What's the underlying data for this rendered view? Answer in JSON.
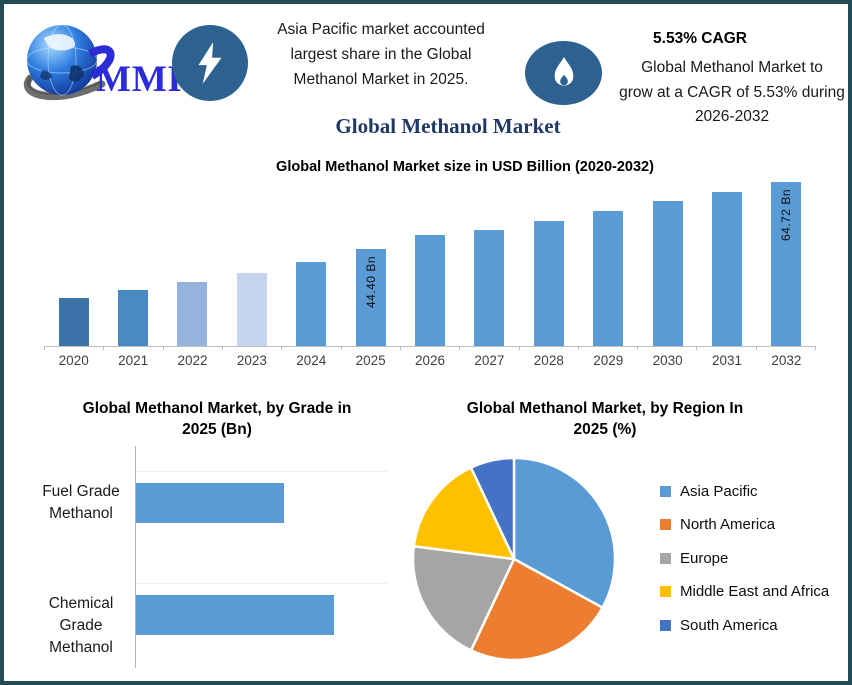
{
  "brand": {
    "logo_text": "MMR"
  },
  "header": {
    "left_note_lines": [
      "Asia Pacific market accounted",
      "largest share in the Global",
      "Methanol Market in 2025."
    ],
    "cagr_headline": "5.53% CAGR",
    "cagr_lines": [
      "Global Methanol Market to",
      "grow at a CAGR of 5.53% during",
      "2026-2032"
    ]
  },
  "page_title": "Global Methanol Market",
  "colors": {
    "accent_blue": "#5b9bd5",
    "icon_circle": "#2c6190",
    "navy_title": "#1f3864",
    "frame_border": "#254b57",
    "logo_blue": "#2c2cd6",
    "axis_gray": "#bfbfbf"
  },
  "chart_data": [
    {
      "id": "market_size_by_year",
      "type": "bar",
      "title": "Global Methanol Market size in USD Billion (2020-2032)",
      "ylabel": "USD Billion",
      "categories": [
        "2020",
        "2021",
        "2022",
        "2023",
        "2024",
        "2025",
        "2026",
        "2027",
        "2028",
        "2029",
        "2030",
        "2031",
        "2032"
      ],
      "values": [
        29.6,
        31.9,
        34.3,
        37.2,
        40.6,
        44.4,
        48.6,
        50.2,
        52.9,
        55.9,
        59.0,
        61.7,
        64.72
      ],
      "values_estimated_except_labeled": true,
      "point_labels": [
        "",
        "",
        "",
        "",
        "",
        "44.40 Bn",
        "",
        "",
        "",
        "",
        "",
        "",
        "64.72 Bn"
      ],
      "bar_colors": [
        "#3c73a8",
        "#4a8ac4",
        "#94b4de",
        "#c5d5ed",
        "#5b9bd5",
        "#5b9bd5",
        "#5b9bd5",
        "#5b9bd5",
        "#5b9bd5",
        "#5b9bd5",
        "#5b9bd5",
        "#5b9bd5",
        "#5b9bd5"
      ],
      "grid": false,
      "legend": false
    },
    {
      "id": "by_grade_2025",
      "type": "bar",
      "orientation": "horizontal",
      "title_lines": [
        "Global Methanol Market, by Grade in",
        "2025 (Bn)"
      ],
      "categories": [
        "Fuel Grade Methanol",
        "Chemical Grade Methanol"
      ],
      "category_label_lines": [
        [
          "Fuel Grade",
          "Methanol"
        ],
        [
          "Chemical Grade",
          "Methanol"
        ]
      ],
      "values": [
        19.0,
        25.4
      ],
      "values_estimated": true,
      "bar_color": "#5b9bd5",
      "grid": false,
      "legend": false
    },
    {
      "id": "by_region_2025",
      "type": "pie",
      "title_lines": [
        "Global Methanol Market, by Region In",
        "2025 (%)"
      ],
      "labels": [
        "Asia Pacific",
        "North America",
        "Europe",
        "Middle East and Africa",
        "South America"
      ],
      "values": [
        33,
        24,
        20,
        16,
        7
      ],
      "values_estimated": true,
      "colors": [
        "#5b9bd5",
        "#ed7d31",
        "#a5a5a5",
        "#ffc000",
        "#4472c4"
      ],
      "legend_position": "right",
      "slice_gap_color": "#ffffff"
    }
  ]
}
